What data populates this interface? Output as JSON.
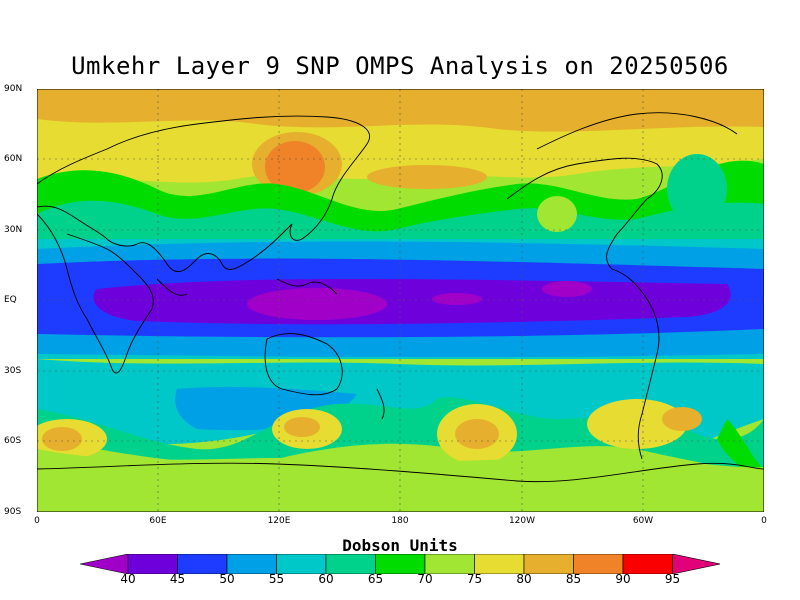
{
  "title": "Umkehr Layer 9 SNP OMPS Analysis on 20250506",
  "lat_labels": [
    "90N",
    "60N",
    "30N",
    "EQ",
    "30S",
    "60S",
    "90S"
  ],
  "lon_labels": [
    "0",
    "60E",
    "120E",
    "180",
    "120W",
    "60W",
    "0"
  ],
  "colorbar": {
    "title": "Dobson Units",
    "levels": [
      "40",
      "45",
      "50",
      "55",
      "60",
      "65",
      "70",
      "75",
      "80",
      "85",
      "90",
      "95"
    ],
    "colors": [
      "#a000c8",
      "#6e00dc",
      "#1e3cff",
      "#00a0e6",
      "#00c8c8",
      "#00d28c",
      "#00dc00",
      "#a0e632",
      "#e6dc32",
      "#e6af2d",
      "#f08228",
      "#fa0000",
      "#e10078"
    ]
  },
  "map_colors": {
    "band_purple": "#a000c8",
    "band_violet": "#6e00dc",
    "band_blue": "#1e3cff",
    "band_lightblue": "#00a0e6",
    "band_cyan": "#00c8c8",
    "band_teal": "#00d28c",
    "band_green": "#00dc00",
    "band_lime": "#a0e632",
    "band_yellow": "#e6dc32",
    "band_orange": "#e6af2d",
    "band_darkorange": "#f08228"
  }
}
